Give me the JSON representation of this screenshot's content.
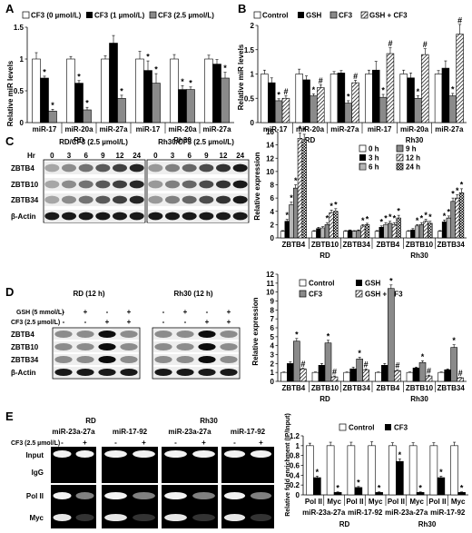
{
  "panels": {
    "A": {
      "letter": "A",
      "legend": [
        "CF3 (0 µmol/L)",
        "CF3 (1 µmol/L)",
        "CF3 (2.5 µmol/L)"
      ],
      "ylabel": "Relative miR levels",
      "yticks": [
        "0",
        "0.5",
        "1",
        "1.5"
      ],
      "categories": [
        "miR-17",
        "miR-20a",
        "miR-27a",
        "miR-17",
        "miR-20a",
        "miR-27a"
      ],
      "groups": [
        "RD",
        "Rh30"
      ]
    },
    "B": {
      "letter": "B",
      "legend": [
        "Control",
        "GSH",
        "CF3",
        "GSH + CF3"
      ],
      "ylabel": "Relative miR levels",
      "yticks": [
        "0",
        "0.5",
        "1",
        "1.5",
        "2"
      ],
      "categories": [
        "miR-17",
        "miR-20a",
        "miR-27a",
        "miR-17",
        "miR-20a",
        "miR-27a"
      ],
      "groups": [
        "RD",
        "Rh30"
      ]
    },
    "C": {
      "letter": "C",
      "blot_title_rd": "RD/CF3 (2.5 µmol/L)",
      "blot_title_rh": "Rh30/CF3 (2.5 µmol/L)",
      "hr_label": "Hr",
      "timepoints": [
        "0",
        "3",
        "6",
        "9",
        "12",
        "24"
      ],
      "proteins": [
        "ZBTB4",
        "ZBTB10",
        "ZBTB34",
        "β-Actin"
      ],
      "legend": [
        "0 h",
        "3 h",
        "6 h",
        "9 h",
        "12 h",
        "24 h"
      ],
      "ylabel": "Relative expression",
      "yticks": [
        "0",
        "2",
        "4",
        "6",
        "8",
        "10",
        "12",
        "14",
        "16"
      ],
      "categories": [
        "ZBTB4",
        "ZBTB10",
        "ZBTB34",
        "ZBTB4",
        "ZBTB10",
        "ZBTB34"
      ],
      "groups": [
        "RD",
        "Rh30"
      ]
    },
    "D": {
      "letter": "D",
      "blot_title_rd": "RD (12 h)",
      "blot_title_rh": "Rh30 (12 h)",
      "treat_labels": [
        "GSH (5 mmol/L)",
        "CF3 (2.5 µmol/L)"
      ],
      "gsh_signs": [
        "-",
        "+",
        "-",
        "+"
      ],
      "cf3_signs": [
        "-",
        "-",
        "+",
        "+"
      ],
      "proteins": [
        "ZBTB4",
        "ZBTB10",
        "ZBTB34",
        "β-Actin"
      ],
      "legend": [
        "Control",
        "GSH",
        "CF3",
        "GSH + CF3"
      ],
      "ylabel": "Relative expression",
      "yticks": [
        "0",
        "1",
        "2",
        "3",
        "4",
        "5",
        "6",
        "7",
        "8",
        "9",
        "10",
        "11",
        "12"
      ],
      "categories": [
        "ZBTB4",
        "ZBTB10",
        "ZBTB34",
        "ZBTB4",
        "ZBTB10",
        "ZBTB34"
      ],
      "groups": [
        "RD",
        "Rh30"
      ]
    },
    "E": {
      "letter": "E",
      "cf3_label": "CF3 (2.5 µmol/L)",
      "gel_rd": "RD",
      "gel_rh": "Rh30",
      "loci": [
        "miR-23a-27a",
        "miR-17-92",
        "miR-23a-27a",
        "miR-17-92"
      ],
      "signs": [
        "-",
        "+"
      ],
      "rows": [
        "Input",
        "IgG",
        "Pol II",
        "Myc"
      ],
      "legend": [
        "Control",
        "CF3"
      ],
      "ylabel": "Relative fold enrichment (IP/Input)",
      "yticks": [
        "0",
        "0.2",
        "0.4",
        "0.6",
        "0.8",
        "1",
        "1.2"
      ],
      "categories": [
        "Pol II",
        "Myc",
        "Pol II",
        "Myc",
        "Pol II",
        "Myc",
        "Pol II",
        "Myc"
      ],
      "loci_labels": [
        "miR-23a-27a",
        "miR-17-92",
        "miR-23a-27a",
        "miR-17-92"
      ],
      "groups": [
        "RD",
        "Rh30"
      ]
    }
  },
  "chart_data": [
    {
      "type": "bar",
      "panel": "A",
      "ylim": [
        0,
        1.5
      ],
      "categories": [
        "miR-17",
        "miR-20a",
        "miR-27a",
        "miR-17",
        "miR-20a",
        "miR-27a"
      ],
      "series": [
        {
          "name": "CF3 (0 µmol/L)",
          "values": [
            1.0,
            1.0,
            1.0,
            1.0,
            1.0,
            1.0
          ],
          "err": [
            0.1,
            0.04,
            0.05,
            0.12,
            0.07,
            0.06
          ]
        },
        {
          "name": "CF3 (1 µmol/L)",
          "values": [
            0.7,
            0.62,
            1.25,
            0.82,
            0.52,
            0.92
          ],
          "err": [
            0.03,
            0.04,
            0.12,
            0.15,
            0.06,
            0.07
          ]
        },
        {
          "name": "CF3 (2.5 µmol/L)",
          "values": [
            0.18,
            0.2,
            0.38,
            0.62,
            0.52,
            0.7
          ],
          "err": [
            0.03,
            0.04,
            0.05,
            0.15,
            0.04,
            0.09
          ]
        }
      ],
      "stars": [
        [
          false,
          true,
          true
        ],
        [
          false,
          true,
          true
        ],
        [
          false,
          false,
          true
        ],
        [
          false,
          true,
          true
        ],
        [
          false,
          true,
          true
        ],
        [
          false,
          false,
          true
        ]
      ]
    },
    {
      "type": "bar",
      "panel": "B",
      "ylim": [
        0,
        2
      ],
      "categories": [
        "miR-17",
        "miR-20a",
        "miR-27a",
        "miR-17",
        "miR-20a",
        "miR-27a"
      ],
      "series": [
        {
          "name": "Control",
          "values": [
            1.0,
            1.0,
            1.0,
            1.0,
            1.0,
            1.0
          ],
          "err": [
            0.08,
            0.1,
            0.05,
            0.08,
            0.08,
            0.07
          ]
        },
        {
          "name": "GSH",
          "values": [
            0.82,
            0.88,
            1.02,
            1.08,
            0.92,
            1.12
          ],
          "err": [
            0.1,
            0.08,
            0.05,
            0.18,
            0.1,
            0.15
          ]
        },
        {
          "name": "CF3",
          "values": [
            0.45,
            0.55,
            0.4,
            0.52,
            0.5,
            0.55
          ],
          "err": [
            0.04,
            0.04,
            0.05,
            0.06,
            0.05,
            0.05
          ]
        },
        {
          "name": "GSH + CF3",
          "values": [
            0.5,
            0.72,
            0.82,
            1.42,
            1.4,
            1.82
          ],
          "err": [
            0.05,
            0.06,
            0.05,
            0.12,
            0.12,
            0.2
          ]
        }
      ],
      "stars": [
        [
          false,
          false,
          true,
          false
        ],
        [
          false,
          false,
          true,
          false
        ],
        [
          false,
          false,
          true,
          false
        ],
        [
          false,
          false,
          true,
          false
        ],
        [
          false,
          false,
          true,
          false
        ],
        [
          false,
          false,
          true,
          false
        ]
      ],
      "hash": [
        [
          false,
          false,
          false,
          true
        ],
        [
          false,
          false,
          false,
          true
        ],
        [
          false,
          false,
          false,
          true
        ],
        [
          false,
          false,
          false,
          true
        ],
        [
          false,
          false,
          false,
          true
        ],
        [
          false,
          false,
          false,
          true
        ]
      ]
    },
    {
      "type": "bar",
      "panel": "C",
      "ylim": [
        0,
        16
      ],
      "categories": [
        "ZBTB4",
        "ZBTB10",
        "ZBTB34",
        "ZBTB4",
        "ZBTB10",
        "ZBTB34"
      ],
      "series": [
        {
          "name": "0 h",
          "values": [
            1,
            1,
            1,
            1,
            1,
            1
          ],
          "err": [
            0.1,
            0.1,
            0.1,
            0.1,
            0.1,
            0.1
          ]
        },
        {
          "name": "3 h",
          "values": [
            2.5,
            1.4,
            1.1,
            1.6,
            1.2,
            2.4
          ],
          "err": [
            0.3,
            0.2,
            0.1,
            0.2,
            0.2,
            0.3
          ]
        },
        {
          "name": "6 h",
          "values": [
            5.0,
            1.5,
            1.0,
            2.0,
            1.8,
            3.0
          ],
          "err": [
            0.4,
            0.2,
            0.1,
            0.3,
            0.2,
            0.3
          ]
        },
        {
          "name": "9 h",
          "values": [
            7.5,
            2.0,
            1.1,
            2.2,
            2.0,
            5.5
          ],
          "err": [
            0.5,
            0.3,
            0.1,
            0.3,
            0.3,
            0.5
          ]
        },
        {
          "name": "12 h",
          "values": [
            15.0,
            3.8,
            1.8,
            2.0,
            2.5,
            6.0
          ],
          "err": [
            0.8,
            0.4,
            0.2,
            0.3,
            0.3,
            0.5
          ]
        },
        {
          "name": "24 h",
          "values": [
            14.8,
            4.0,
            2.0,
            3.0,
            2.2,
            6.8
          ],
          "err": [
            0.8,
            0.4,
            0.2,
            0.4,
            0.3,
            0.6
          ]
        }
      ]
    },
    {
      "type": "bar",
      "panel": "D",
      "ylim": [
        0,
        12
      ],
      "categories": [
        "ZBTB4",
        "ZBTB10",
        "ZBTB34",
        "ZBTB4",
        "ZBTB10",
        "ZBTB34"
      ],
      "series": [
        {
          "name": "Control",
          "values": [
            1,
            1,
            1,
            1,
            1,
            1
          ],
          "err": [
            0.05,
            0.05,
            0.05,
            0.05,
            0.05,
            0.05
          ]
        },
        {
          "name": "GSH",
          "values": [
            2.0,
            1.8,
            1.4,
            1.8,
            1.5,
            1.3
          ],
          "err": [
            0.2,
            0.2,
            0.2,
            0.2,
            0.1,
            0.1
          ]
        },
        {
          "name": "CF3",
          "values": [
            4.5,
            4.3,
            2.5,
            10.4,
            2.1,
            3.8
          ],
          "err": [
            0.3,
            0.3,
            0.2,
            0.4,
            0.2,
            0.3
          ]
        },
        {
          "name": "GSH + CF3",
          "values": [
            1.4,
            0.5,
            1.3,
            1.2,
            0.6,
            0.4
          ],
          "err": [
            0.1,
            0.1,
            0.1,
            0.1,
            0.1,
            0.05
          ]
        }
      ]
    },
    {
      "type": "bar",
      "panel": "E",
      "ylim": [
        0,
        1.2
      ],
      "categories": [
        "Pol II",
        "Myc",
        "Pol II",
        "Myc",
        "Pol II",
        "Myc",
        "Pol II",
        "Myc"
      ],
      "series": [
        {
          "name": "Control",
          "values": [
            1,
            1,
            1,
            1,
            1,
            1,
            1,
            1
          ],
          "err": [
            0.05,
            0.07,
            0.07,
            0.08,
            0.06,
            0.06,
            0.06,
            0.07
          ]
        },
        {
          "name": "CF3",
          "values": [
            0.35,
            0.05,
            0.15,
            0.05,
            0.68,
            0.05,
            0.35,
            0.05
          ],
          "err": [
            0.03,
            0.01,
            0.02,
            0.01,
            0.05,
            0.01,
            0.03,
            0.01
          ]
        }
      ]
    }
  ]
}
